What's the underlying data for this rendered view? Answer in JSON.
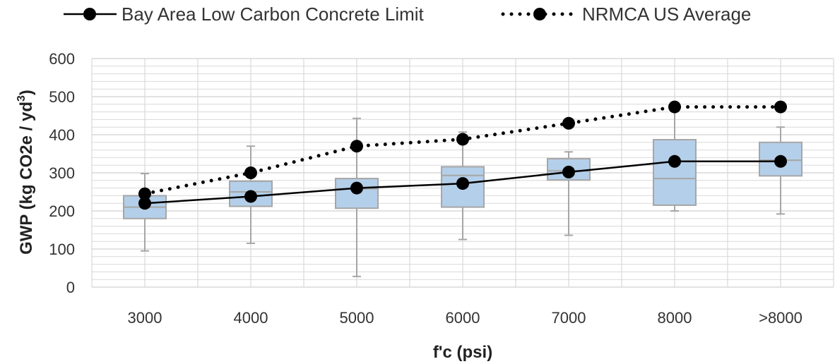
{
  "chart_data": {
    "type": "box",
    "xlabel": "f'c (psi)",
    "ylabel": "GWP (kg CO2e / yd",
    "ylabel_superscript": "3",
    "ylabel_close": ")",
    "ylim": [
      0,
      600
    ],
    "yticks": [
      0,
      100,
      200,
      300,
      400,
      500,
      600
    ],
    "grid": true,
    "legend_position": "top",
    "categories": [
      "3000",
      "4000",
      "5000",
      "6000",
      "7000",
      "8000",
      ">8000"
    ],
    "boxes": [
      {
        "min": 95,
        "q1": 180,
        "median": 210,
        "q3": 240,
        "max": 298
      },
      {
        "min": 115,
        "q1": 212,
        "median": 250,
        "q3": 278,
        "max": 370
      },
      {
        "min": 28,
        "q1": 207,
        "median": 258,
        "q3": 285,
        "max": 443
      },
      {
        "min": 125,
        "q1": 210,
        "median": 293,
        "q3": 316,
        "max": 407
      },
      {
        "min": 136,
        "q1": 281,
        "median": 305,
        "q3": 337,
        "max": 355
      },
      {
        "min": 200,
        "q1": 215,
        "median": 285,
        "q3": 387,
        "max": 480
      },
      {
        "min": 192,
        "q1": 292,
        "median": 333,
        "q3": 380,
        "max": 420
      }
    ],
    "series": [
      {
        "name": "Bay Area Low Carbon Concrete Limit",
        "style": "solid",
        "values": [
          220,
          238,
          260,
          272,
          302,
          330,
          330
        ]
      },
      {
        "name": "NRMCA US Average",
        "style": "dotted",
        "values": [
          245,
          300,
          370,
          388,
          430,
          473,
          473
        ]
      }
    ],
    "colors": {
      "box_fill": "#b4cfe9",
      "box_stroke": "#a6a6a6",
      "whisker": "#a6a6a6",
      "line": "#000000",
      "marker": "#000000",
      "grid": "#d9d9d9"
    }
  }
}
